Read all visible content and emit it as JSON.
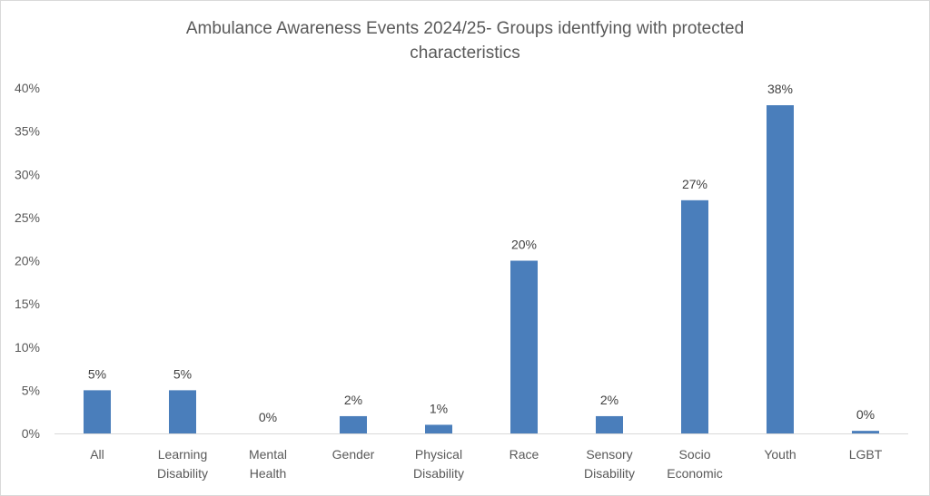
{
  "chart_data": {
    "type": "bar",
    "title_lines": [
      "Ambulance Awareness Events 2024/25- Groups identfying with protected",
      "characteristics"
    ],
    "categories": [
      [
        "All"
      ],
      [
        "Learning",
        "Disability"
      ],
      [
        "Mental",
        "Health"
      ],
      [
        "Gender"
      ],
      [
        "Physical",
        "Disability"
      ],
      [
        "Race"
      ],
      [
        "Sensory",
        "Disability"
      ],
      [
        "Socio",
        "Economic"
      ],
      [
        "Youth"
      ],
      [
        "LGBT"
      ]
    ],
    "values": [
      5,
      5,
      0,
      2,
      1,
      20,
      2,
      27,
      38,
      0.3
    ],
    "data_labels": [
      "5%",
      "5%",
      "0%",
      "2%",
      "1%",
      "20%",
      "2%",
      "27%",
      "38%",
      "0%"
    ],
    "y_ticks": [
      0,
      5,
      10,
      15,
      20,
      25,
      30,
      35,
      40
    ],
    "y_tick_labels": [
      "0%",
      "5%",
      "10%",
      "15%",
      "20%",
      "25%",
      "30%",
      "35%",
      "40%"
    ],
    "ylim": [
      0,
      40
    ],
    "xlabel": "",
    "ylabel": "",
    "grid": false,
    "legend": "none",
    "colors": {
      "bar": "#4a7ebb",
      "axis": "#d9d9d9",
      "text": "#595959"
    }
  }
}
